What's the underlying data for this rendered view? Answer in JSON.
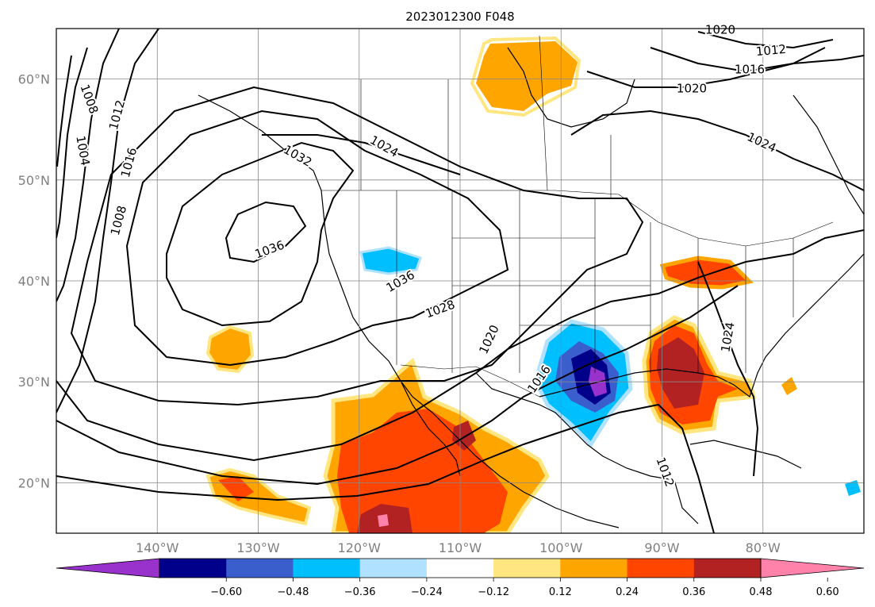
{
  "title": "2023012300 F048",
  "map": {
    "lat_ticks": [
      {
        "lat": 60,
        "label": "60°N"
      },
      {
        "lat": 50,
        "label": "50°N"
      },
      {
        "lat": 40,
        "label": "40°N"
      },
      {
        "lat": 30,
        "label": "30°N"
      },
      {
        "lat": 20,
        "label": "20°N"
      }
    ],
    "lon_ticks": [
      {
        "lon": -140,
        "label": "140°W"
      },
      {
        "lon": -130,
        "label": "130°W"
      },
      {
        "lon": -120,
        "label": "120°W"
      },
      {
        "lon": -110,
        "label": "110°W"
      },
      {
        "lon": -100,
        "label": "100°W"
      },
      {
        "lon": -90,
        "label": "90°W"
      },
      {
        "lon": -80,
        "label": "80°W"
      }
    ],
    "extent": {
      "lon_min": -150,
      "lon_max": -70,
      "lat_min": 15,
      "lat_max": 65
    },
    "gridlines": true,
    "contour_labels": [
      "1008",
      "1012",
      "1016",
      "1020",
      "1024",
      "1032",
      "1036",
      "1036",
      "1028",
      "1020",
      "1016",
      "1012",
      "1024",
      "1024",
      "1020",
      "1016",
      "1012",
      "1008",
      "1004"
    ]
  },
  "colorbar": {
    "levels": [
      "−0.60",
      "−0.48",
      "−0.36",
      "−0.24",
      "−0.12",
      "0.12",
      "0.24",
      "0.36",
      "0.48",
      "0.60"
    ],
    "colors": [
      "#9932cc",
      "#00008b",
      "#3a5fcd",
      "#00bfff",
      "#b0e2ff",
      "#ffffff",
      "#ffe680",
      "#ffa500",
      "#ff4500",
      "#b22222",
      "#ff82ab"
    ],
    "extend": "both",
    "placement": "bottom"
  }
}
